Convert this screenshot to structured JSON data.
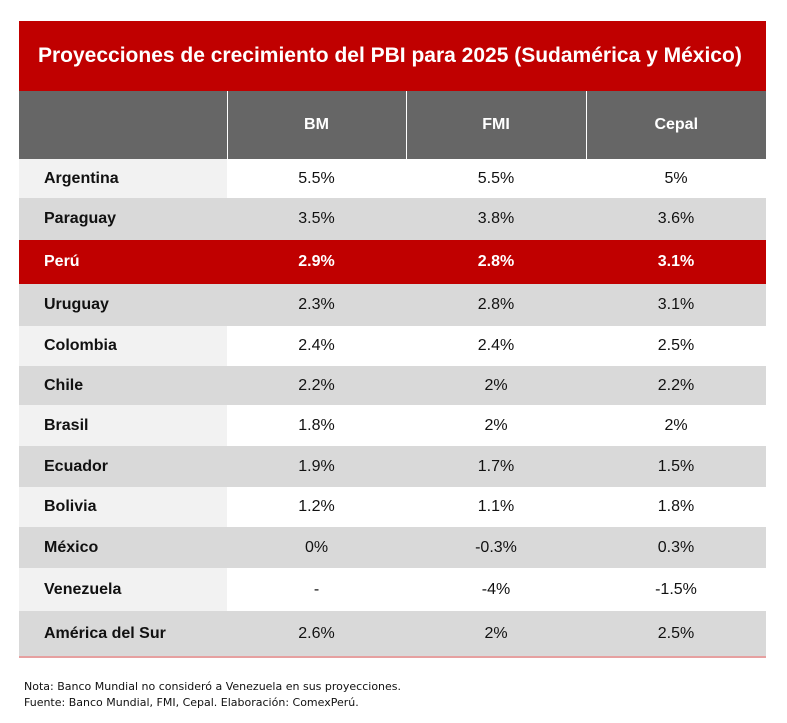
{
  "chart_data": {
    "type": "table",
    "title": "Proyecciones de crecimiento del PBI para 2025 (Sudamérica y México)",
    "columns": [
      "",
      "BM",
      "FMI",
      "Cepal"
    ],
    "rows": [
      {
        "name": "Argentina",
        "values": [
          "5.5%",
          "5.5%",
          "5%"
        ]
      },
      {
        "name": "Paraguay",
        "values": [
          "3.5%",
          "3.8%",
          "3.6%"
        ]
      },
      {
        "name": "Perú",
        "values": [
          "2.9%",
          "2.8%",
          "3.1%"
        ],
        "highlight": true
      },
      {
        "name": "Uruguay",
        "values": [
          "2.3%",
          "2.8%",
          "3.1%"
        ]
      },
      {
        "name": "Colombia",
        "values": [
          "2.4%",
          "2.4%",
          "2.5%"
        ]
      },
      {
        "name": "Chile",
        "values": [
          "2.2%",
          "2%",
          "2.2%"
        ]
      },
      {
        "name": "Brasil",
        "values": [
          "1.8%",
          "2%",
          "2%"
        ]
      },
      {
        "name": "Ecuador",
        "values": [
          "1.9%",
          "1.7%",
          "1.5%"
        ]
      },
      {
        "name": "Bolivia",
        "values": [
          "1.2%",
          "1.1%",
          "1.8%"
        ]
      },
      {
        "name": "México",
        "values": [
          "0%",
          "-0.3%",
          "0.3%"
        ]
      },
      {
        "name": "Venezuela",
        "values": [
          "-",
          "-4%",
          "-1.5%"
        ]
      },
      {
        "name": "América del Sur",
        "values": [
          "2.6%",
          "2%",
          "2.5%"
        ]
      }
    ]
  },
  "notes": {
    "nota": "Nota: Banco Mundial no consideró a Venezuela en sus proyecciones.",
    "fuente": "Fuente: Banco Mundial, FMI, Cepal. Elaboración: ComexPerú."
  },
  "colors": {
    "accent": "#c00000",
    "header": "#666666",
    "stripe": "#d9d9d9"
  }
}
